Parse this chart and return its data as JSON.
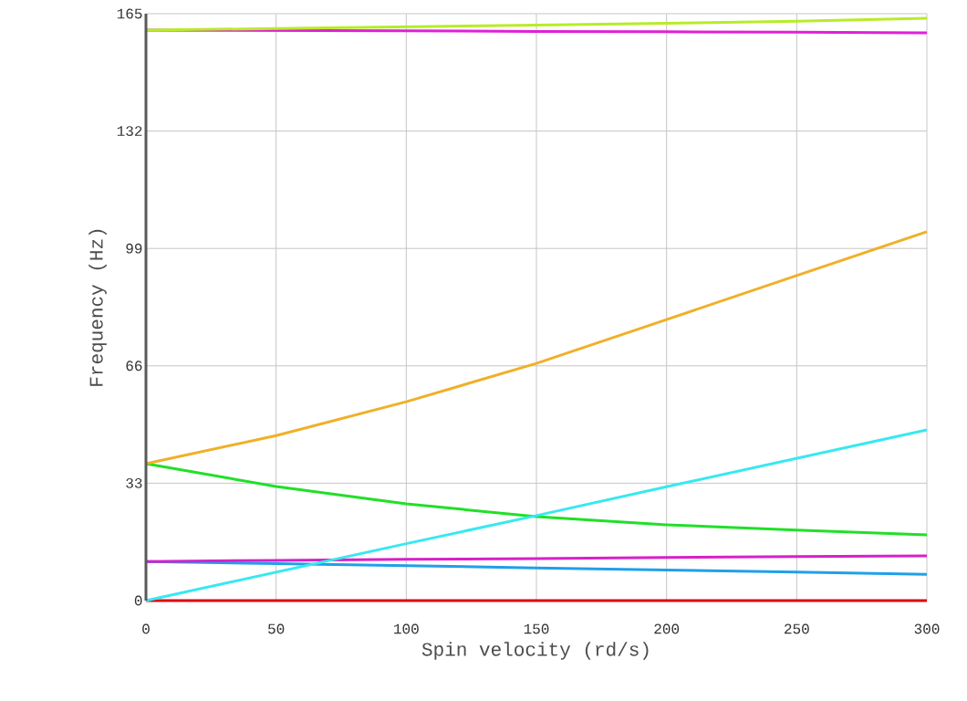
{
  "chart_data": {
    "type": "line",
    "xlabel": "Spin velocity (rd/s)",
    "ylabel": "Frequency (Hz)",
    "x": [
      0,
      50,
      100,
      150,
      200,
      250,
      300
    ],
    "series": [
      {
        "color": "#b8ec28",
        "values": [
          160.4,
          160.8,
          161.3,
          161.8,
          162.3,
          162.9,
          163.7
        ]
      },
      {
        "color": "#e020d8",
        "values": [
          160.4,
          160.3,
          160.2,
          160.0,
          159.9,
          159.8,
          159.6
        ]
      },
      {
        "color": "#f0b028",
        "values": [
          38.5,
          46.4,
          55.9,
          66.7,
          79.0,
          91.4,
          103.7
        ]
      },
      {
        "color": "#38e8f0",
        "values": [
          0,
          8.0,
          16.0,
          23.9,
          32.0,
          40.0,
          48.0
        ]
      },
      {
        "color": "#20e028",
        "values": [
          38.5,
          32.1,
          27.2,
          23.6,
          21.3,
          19.8,
          18.5
        ]
      },
      {
        "color": "#d820c8",
        "values": [
          11.0,
          11.3,
          11.6,
          11.8,
          12.1,
          12.4,
          12.6
        ]
      },
      {
        "color": "#20a0e8",
        "values": [
          11.0,
          10.4,
          9.8,
          9.2,
          8.6,
          8.0,
          7.4
        ]
      },
      {
        "color": "#e00010",
        "values": [
          0,
          0,
          0,
          0,
          0,
          0,
          0
        ]
      }
    ],
    "xlim": [
      0,
      300
    ],
    "xticks": [
      0,
      50,
      100,
      150,
      200,
      250,
      300
    ],
    "ylim": [
      0,
      165
    ],
    "yticks": [
      0,
      33,
      66,
      99,
      132,
      165
    ],
    "grid": true,
    "marker": "none",
    "line_style": "solid"
  }
}
